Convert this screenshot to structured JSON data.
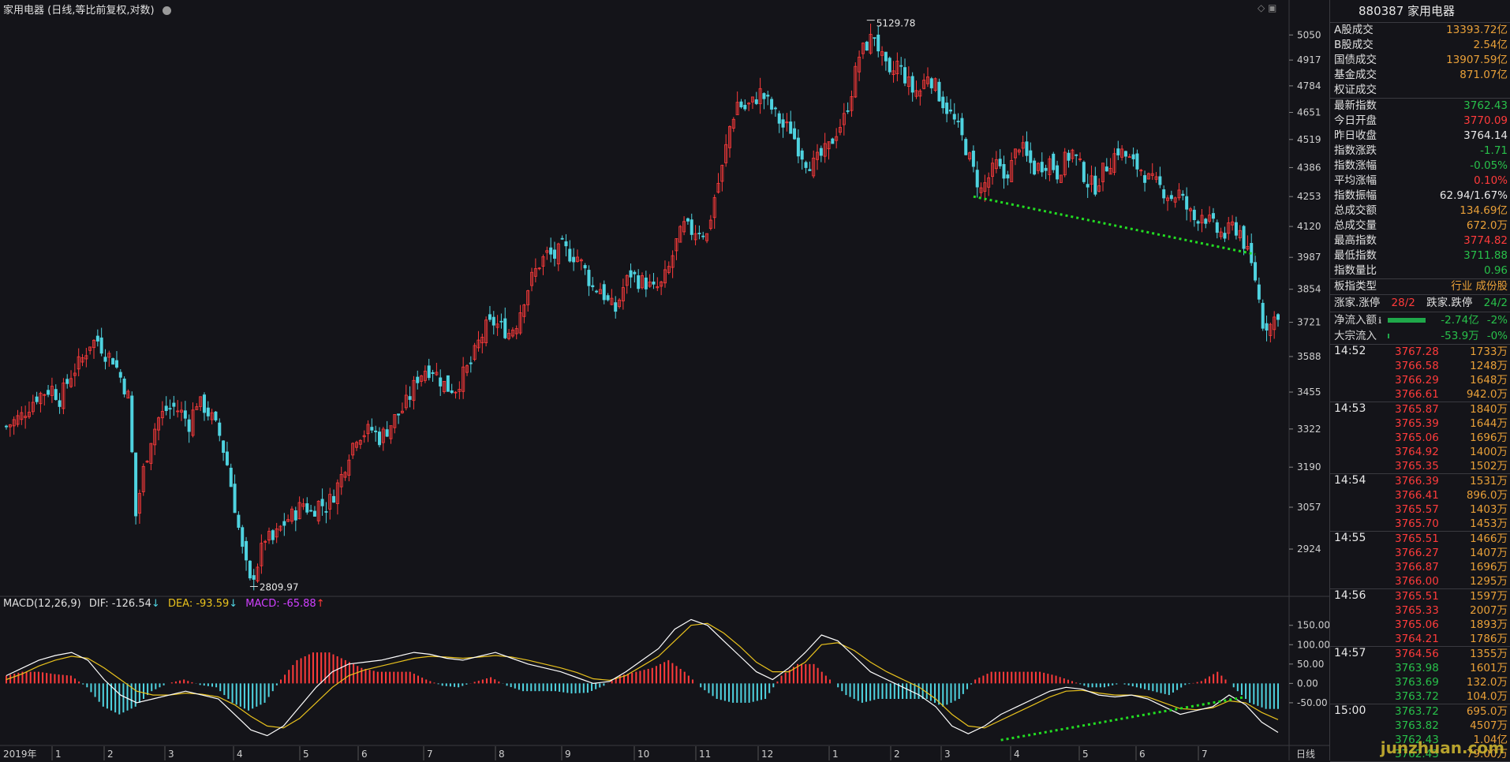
{
  "header": {
    "title": "家用电器 (日线,等比前复权,对数)"
  },
  "macd_header": {
    "label": "MACD(12,26,9)",
    "dif": "DIF: -126.54",
    "dif_arrow": "↓",
    "dea": "DEA: -93.59",
    "dea_arrow": "↓",
    "macd": "MACD: -65.88",
    "macd_arrow": "↑"
  },
  "colors": {
    "up": "#ff3b3b",
    "down": "#4fd3e0",
    "dif_line": "#ffffff",
    "dea_line": "#e9c21d",
    "trendline": "#22dd22",
    "macd_label": "#d040ff"
  },
  "chart_data": [
    {
      "type": "candlestick",
      "title": "家用电器 (日线,等比前复权,对数)",
      "y_scale": "log",
      "y_ticks": [
        5050,
        4917,
        4784,
        4651,
        4519,
        4386,
        4253,
        4120,
        3987,
        3854,
        3721,
        3588,
        3455,
        3322,
        3190,
        3057,
        2924
      ],
      "ylim": [
        2790,
        5180
      ],
      "x_ticks": [
        "2019年",
        "1",
        "2",
        "3",
        "4",
        "5",
        "6",
        "7",
        "8",
        "9",
        "10",
        "11",
        "12",
        "1",
        "2",
        "3",
        "4",
        "5",
        "6",
        "7"
      ],
      "period_label": "日线",
      "annotations": [
        {
          "text": "5129.78",
          "type": "high"
        },
        {
          "text": "2809.97",
          "type": "low"
        }
      ],
      "trendline": {
        "from": 4253,
        "to": 4000,
        "style": "dotted"
      },
      "close_path": [
        [
          0,
          3330
        ],
        [
          4,
          3370
        ],
        [
          8,
          3440
        ],
        [
          12,
          3470
        ],
        [
          14,
          3430
        ],
        [
          17,
          3520
        ],
        [
          20,
          3580
        ],
        [
          22,
          3640
        ],
        [
          24,
          3650
        ],
        [
          26,
          3600
        ],
        [
          28,
          3580
        ],
        [
          30,
          3510
        ],
        [
          32,
          3440
        ],
        [
          34,
          3030
        ],
        [
          36,
          3180
        ],
        [
          38,
          3290
        ],
        [
          40,
          3360
        ],
        [
          42,
          3390
        ],
        [
          44,
          3400
        ],
        [
          46,
          3380
        ],
        [
          48,
          3340
        ],
        [
          50,
          3420
        ],
        [
          52,
          3400
        ],
        [
          54,
          3360
        ],
        [
          56,
          3300
        ],
        [
          58,
          3200
        ],
        [
          60,
          3060
        ],
        [
          62,
          2920
        ],
        [
          64,
          2820
        ],
        [
          66,
          2880
        ],
        [
          68,
          2960
        ],
        [
          70,
          2950
        ],
        [
          72,
          2990
        ],
        [
          74,
          3020
        ],
        [
          76,
          3040
        ],
        [
          78,
          3070
        ],
        [
          80,
          3040
        ],
        [
          82,
          3070
        ],
        [
          84,
          3060
        ],
        [
          86,
          3100
        ],
        [
          88,
          3160
        ],
        [
          90,
          3240
        ],
        [
          92,
          3300
        ],
        [
          94,
          3310
        ],
        [
          96,
          3320
        ],
        [
          98,
          3290
        ],
        [
          100,
          3320
        ],
        [
          102,
          3360
        ],
        [
          104,
          3390
        ],
        [
          106,
          3440
        ],
        [
          108,
          3510
        ],
        [
          110,
          3540
        ],
        [
          112,
          3540
        ],
        [
          114,
          3500
        ],
        [
          116,
          3470
        ],
        [
          118,
          3470
        ],
        [
          120,
          3520
        ],
        [
          122,
          3560
        ],
        [
          124,
          3640
        ],
        [
          126,
          3700
        ],
        [
          128,
          3720
        ],
        [
          130,
          3700
        ],
        [
          132,
          3680
        ],
        [
          134,
          3720
        ],
        [
          136,
          3820
        ],
        [
          138,
          3900
        ],
        [
          140,
          3960
        ],
        [
          142,
          4000
        ],
        [
          144,
          3990
        ],
        [
          146,
          4030
        ],
        [
          148,
          4000
        ],
        [
          150,
          3990
        ],
        [
          152,
          3930
        ],
        [
          154,
          3860
        ],
        [
          156,
          3860
        ],
        [
          158,
          3800
        ],
        [
          160,
          3770
        ],
        [
          162,
          3860
        ],
        [
          164,
          3920
        ],
        [
          166,
          3890
        ],
        [
          168,
          3880
        ],
        [
          170,
          3850
        ],
        [
          172,
          3870
        ],
        [
          174,
          3940
        ],
        [
          176,
          4050
        ],
        [
          178,
          4120
        ],
        [
          180,
          4100
        ],
        [
          182,
          4110
        ],
        [
          184,
          4080
        ],
        [
          186,
          4250
        ],
        [
          188,
          4380
        ],
        [
          190,
          4580
        ],
        [
          192,
          4700
        ],
        [
          194,
          4670
        ],
        [
          196,
          4700
        ],
        [
          198,
          4750
        ],
        [
          200,
          4700
        ],
        [
          202,
          4640
        ],
        [
          204,
          4580
        ],
        [
          206,
          4570
        ],
        [
          208,
          4480
        ],
        [
          210,
          4420
        ],
        [
          212,
          4400
        ],
        [
          214,
          4440
        ],
        [
          216,
          4480
        ],
        [
          218,
          4560
        ],
        [
          220,
          4620
        ],
        [
          222,
          4760
        ],
        [
          224,
          4940
        ],
        [
          226,
          5000
        ],
        [
          228,
          5050
        ],
        [
          230,
          4920
        ],
        [
          232,
          4820
        ],
        [
          234,
          4900
        ],
        [
          236,
          4830
        ],
        [
          238,
          4760
        ],
        [
          240,
          4760
        ],
        [
          242,
          4850
        ],
        [
          244,
          4780
        ],
        [
          246,
          4700
        ],
        [
          248,
          4640
        ],
        [
          250,
          4570
        ],
        [
          252,
          4480
        ],
        [
          254,
          4370
        ],
        [
          256,
          4280
        ],
        [
          258,
          4340
        ],
        [
          260,
          4400
        ],
        [
          262,
          4340
        ],
        [
          264,
          4400
        ],
        [
          266,
          4500
        ],
        [
          268,
          4430
        ],
        [
          270,
          4380
        ],
        [
          272,
          4400
        ],
        [
          274,
          4420
        ],
        [
          276,
          4360
        ],
        [
          278,
          4420
        ],
        [
          280,
          4460
        ],
        [
          282,
          4390
        ],
        [
          284,
          4320
        ],
        [
          286,
          4300
        ],
        [
          288,
          4370
        ],
        [
          290,
          4420
        ],
        [
          292,
          4470
        ],
        [
          294,
          4440
        ],
        [
          296,
          4400
        ],
        [
          298,
          4380
        ],
        [
          300,
          4330
        ],
        [
          302,
          4310
        ],
        [
          304,
          4280
        ],
        [
          306,
          4250
        ],
        [
          308,
          4270
        ],
        [
          310,
          4200
        ],
        [
          312,
          4150
        ],
        [
          314,
          4180
        ],
        [
          316,
          4140
        ],
        [
          318,
          4100
        ],
        [
          320,
          4080
        ],
        [
          322,
          4120
        ],
        [
          324,
          4100
        ],
        [
          326,
          4000
        ],
        [
          328,
          3900
        ],
        [
          330,
          3720
        ],
        [
          332,
          3710
        ],
        [
          334,
          3762
        ]
      ]
    },
    {
      "type": "macd",
      "indicator": "MACD(12,26,9)",
      "y_ticks": [
        150.0,
        100.0,
        50.0,
        0.0,
        -50.0
      ],
      "ylim": [
        -150,
        180
      ],
      "series": [
        {
          "name": "DIF",
          "values": [
            20,
            40,
            60,
            72,
            80,
            60,
            10,
            -30,
            -50,
            -40,
            -30,
            -20,
            -30,
            -40,
            -80,
            -120,
            -135,
            -110,
            -60,
            -10,
            30,
            50,
            55,
            60,
            70,
            80,
            75,
            65,
            60,
            70,
            80,
            65,
            50,
            40,
            30,
            15,
            0,
            5,
            30,
            60,
            90,
            140,
            165,
            150,
            110,
            70,
            30,
            10,
            40,
            80,
            125,
            110,
            70,
            30,
            10,
            -10,
            -30,
            -60,
            -110,
            -130,
            -110,
            -80,
            -60,
            -40,
            -20,
            -10,
            -15,
            -30,
            -35,
            -30,
            -40,
            -60,
            -80,
            -70,
            -60,
            -30,
            -55,
            -100,
            -126.54
          ]
        },
        {
          "name": "DEA",
          "values": [
            10,
            25,
            45,
            60,
            70,
            65,
            40,
            10,
            -20,
            -30,
            -30,
            -25,
            -28,
            -35,
            -55,
            -85,
            -110,
            -115,
            -90,
            -50,
            -10,
            20,
            35,
            45,
            55,
            65,
            70,
            68,
            65,
            68,
            72,
            68,
            60,
            50,
            40,
            28,
            12,
            8,
            20,
            45,
            70,
            110,
            150,
            155,
            130,
            95,
            55,
            30,
            30,
            55,
            100,
            105,
            85,
            55,
            30,
            10,
            -10,
            -40,
            -80,
            -110,
            -115,
            -95,
            -75,
            -55,
            -35,
            -20,
            -18,
            -25,
            -30,
            -30,
            -35,
            -50,
            -65,
            -68,
            -63,
            -45,
            -50,
            -75,
            -93.59
          ]
        }
      ]
    }
  ],
  "right_panel": {
    "title": "880387 家用电器",
    "stats": [
      {
        "label": "A股成交",
        "value": "13393.72亿",
        "color": "orange"
      },
      {
        "label": "B股成交",
        "value": "2.54亿",
        "color": "orange"
      },
      {
        "label": "国债成交",
        "value": "13907.59亿",
        "color": "orange"
      },
      {
        "label": "基金成交",
        "value": "871.07亿",
        "color": "orange"
      },
      {
        "label": "权证成交",
        "value": "",
        "color": "orange"
      }
    ],
    "quotes": [
      {
        "label": "最新指数",
        "value": "3762.43",
        "color": "green"
      },
      {
        "label": "今日开盘",
        "value": "3770.09",
        "color": "red"
      },
      {
        "label": "昨日收盘",
        "value": "3764.14",
        "color": "white"
      },
      {
        "label": "指数涨跌",
        "value": "-1.71",
        "color": "green"
      },
      {
        "label": "指数涨幅",
        "value": "-0.05%",
        "color": "green"
      },
      {
        "label": "平均涨幅",
        "value": "0.10%",
        "color": "red"
      },
      {
        "label": "指数振幅",
        "value": "62.94/1.67%",
        "color": "white"
      },
      {
        "label": "总成交额",
        "value": "134.69亿",
        "color": "orange"
      },
      {
        "label": "总成交量",
        "value": "672.0万",
        "color": "orange"
      },
      {
        "label": "最高指数",
        "value": "3774.82",
        "color": "red"
      },
      {
        "label": "最低指数",
        "value": "3711.88",
        "color": "green"
      },
      {
        "label": "指数量比",
        "value": "0.96",
        "color": "green"
      }
    ],
    "board_type": {
      "label": "板指类型",
      "value": "行业 成份股"
    },
    "limits": {
      "up_label": "涨家.涨停",
      "up_value": "28/2",
      "down_label": "跌家.跌停",
      "down_value": "24/2"
    },
    "flows": [
      {
        "label": "净流入额",
        "value": "-2.74亿",
        "pct": "-2%"
      },
      {
        "label": "大宗流入",
        "value": "-53.9万",
        "pct": "-0%"
      }
    ],
    "ticks": [
      {
        "time": "14:52",
        "rows": [
          {
            "price": "3767.28",
            "vol": "1733万",
            "pc": "red"
          },
          {
            "price": "3766.58",
            "vol": "1248万",
            "pc": "red"
          },
          {
            "price": "3766.29",
            "vol": "1648万",
            "pc": "red"
          },
          {
            "price": "3766.61",
            "vol": "942.0万",
            "pc": "red"
          }
        ]
      },
      {
        "time": "14:53",
        "rows": [
          {
            "price": "3765.87",
            "vol": "1840万",
            "pc": "red"
          },
          {
            "price": "3765.39",
            "vol": "1644万",
            "pc": "red"
          },
          {
            "price": "3765.06",
            "vol": "1696万",
            "pc": "red"
          },
          {
            "price": "3764.92",
            "vol": "1400万",
            "pc": "red"
          },
          {
            "price": "3765.35",
            "vol": "1502万",
            "pc": "red"
          }
        ]
      },
      {
        "time": "14:54",
        "rows": [
          {
            "price": "3766.39",
            "vol": "1531万",
            "pc": "red"
          },
          {
            "price": "3766.41",
            "vol": "896.0万",
            "pc": "red"
          },
          {
            "price": "3765.57",
            "vol": "1403万",
            "pc": "red"
          },
          {
            "price": "3765.70",
            "vol": "1453万",
            "pc": "red"
          }
        ]
      },
      {
        "time": "14:55",
        "rows": [
          {
            "price": "3765.51",
            "vol": "1466万",
            "pc": "red"
          },
          {
            "price": "3766.27",
            "vol": "1407万",
            "pc": "red"
          },
          {
            "price": "3766.87",
            "vol": "1696万",
            "pc": "red"
          },
          {
            "price": "3766.00",
            "vol": "1295万",
            "pc": "red"
          }
        ]
      },
      {
        "time": "14:56",
        "rows": [
          {
            "price": "3765.51",
            "vol": "1597万",
            "pc": "red"
          },
          {
            "price": "3765.33",
            "vol": "2007万",
            "pc": "red"
          },
          {
            "price": "3765.06",
            "vol": "1893万",
            "pc": "red"
          },
          {
            "price": "3764.21",
            "vol": "1786万",
            "pc": "red"
          }
        ]
      },
      {
        "time": "14:57",
        "rows": [
          {
            "price": "3764.56",
            "vol": "1355万",
            "pc": "red"
          },
          {
            "price": "3763.98",
            "vol": "1601万",
            "pc": "green"
          },
          {
            "price": "3763.69",
            "vol": "132.0万",
            "pc": "green"
          },
          {
            "price": "3763.72",
            "vol": "104.0万",
            "pc": "green"
          }
        ]
      },
      {
        "time": "15:00",
        "rows": [
          {
            "price": "3763.72",
            "vol": "695.0万",
            "pc": "green"
          },
          {
            "price": "3763.82",
            "vol": "4507万",
            "pc": "green"
          },
          {
            "price": "3762.43",
            "vol": "1.04亿",
            "pc": "green"
          },
          {
            "price": "3762.43",
            "vol": "79.00万",
            "pc": "green"
          }
        ]
      }
    ],
    "watermark": "junzhuan.com"
  }
}
